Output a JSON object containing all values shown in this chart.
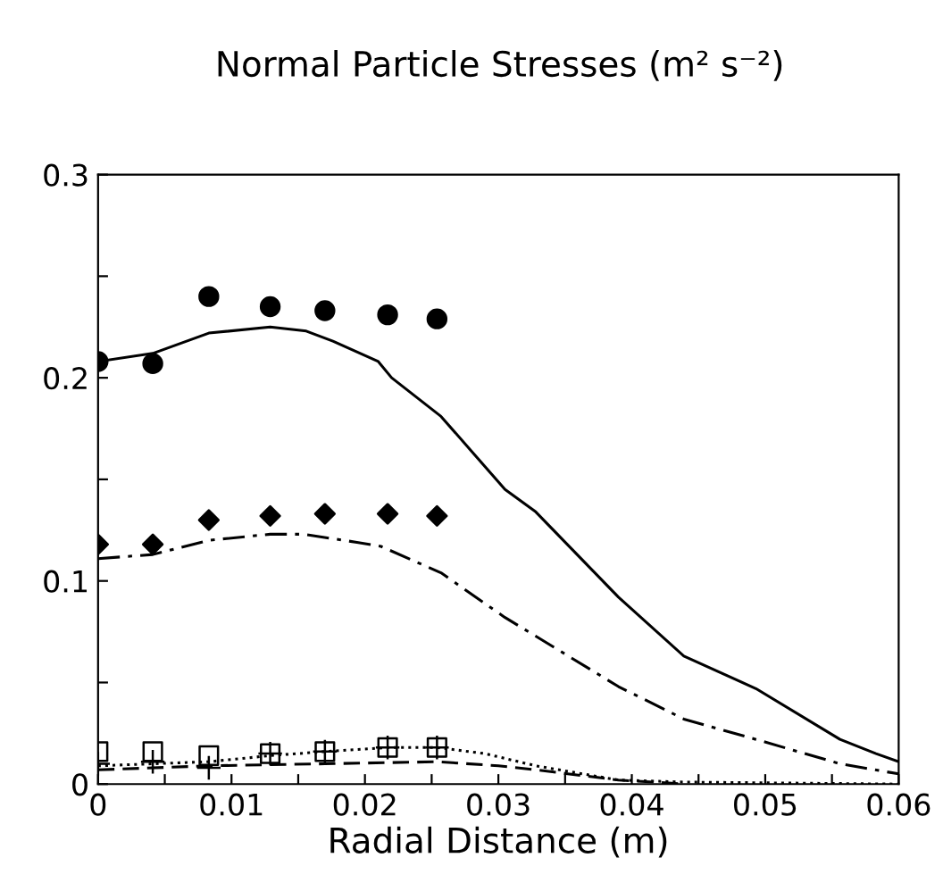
{
  "chart_data": {
    "type": "line",
    "title": "Normal Particle Stresses (m² s⁻²)",
    "xlabel": "Radial Distance (m)",
    "xlim": [
      0,
      0.06
    ],
    "ylim": [
      0,
      0.3
    ],
    "xticks": [
      0,
      {
        "value": 0.005,
        "label": null
      },
      0.01,
      {
        "value": 0.015,
        "label": null
      },
      0.02,
      {
        "value": 0.025,
        "label": null
      },
      0.03,
      {
        "value": 0.035,
        "label": null
      },
      0.04,
      {
        "value": 0.045,
        "label": null
      },
      0.05,
      {
        "value": 0.055,
        "label": null
      },
      0.06
    ],
    "yticks": [
      0,
      {
        "value": 0.05,
        "label": null
      },
      0.1,
      {
        "value": 0.15,
        "label": null
      },
      0.2,
      {
        "value": 0.25,
        "label": null
      },
      0.3
    ],
    "grid": false,
    "legend": false,
    "series": [
      {
        "type": "scatter",
        "marker": "circle",
        "color": "#000000",
        "x": [
          0,
          0.0041,
          0.0083,
          0.0129,
          0.017,
          0.0217,
          0.0254
        ],
        "values": [
          0.208,
          0.207,
          0.24,
          0.235,
          0.233,
          0.231,
          0.229
        ]
      },
      {
        "type": "scatter",
        "marker": "diamond",
        "color": "#000000",
        "x": [
          0,
          0.0041,
          0.0083,
          0.0129,
          0.017,
          0.0217,
          0.0254
        ],
        "values": [
          0.118,
          0.118,
          0.13,
          0.132,
          0.133,
          0.133,
          0.132
        ]
      },
      {
        "type": "scatter",
        "marker": "square",
        "color": "#000000",
        "x": [
          0,
          0.0041,
          0.0083,
          0.0129,
          0.017,
          0.0217,
          0.0254
        ],
        "values": [
          0.016,
          0.016,
          0.014,
          0.015,
          0.016,
          0.018,
          0.018
        ]
      },
      {
        "type": "scatter",
        "marker": "cross",
        "color": "#000000",
        "x": [
          0,
          0.0041,
          0.0083,
          0.0129,
          0.017,
          0.0217,
          0.0254
        ],
        "values": [
          0.01,
          0.011,
          0.008,
          0.015,
          0.016,
          0.018,
          0.018
        ]
      },
      {
        "line_style": "solid",
        "color": "#000000",
        "x": [
          0,
          0.0041,
          0.0083,
          0.0129,
          0.0156,
          0.0176,
          0.021,
          0.022,
          0.0257,
          0.0305,
          0.0328,
          0.039,
          0.0439,
          0.0493,
          0.0556,
          0.0583,
          0.06
        ],
        "values": [
          0.208,
          0.212,
          0.222,
          0.225,
          0.223,
          0.218,
          0.208,
          0.2,
          0.181,
          0.145,
          0.134,
          0.092,
          0.063,
          0.047,
          0.022,
          0.015,
          0.011
        ]
      },
      {
        "line_style": "dashdot",
        "color": "#000000",
        "x": [
          0,
          0.0041,
          0.0083,
          0.0129,
          0.0154,
          0.0194,
          0.0212,
          0.0257,
          0.0305,
          0.039,
          0.0439,
          0.0493,
          0.0556,
          0.06
        ],
        "values": [
          0.111,
          0.113,
          0.12,
          0.123,
          0.123,
          0.119,
          0.117,
          0.104,
          0.082,
          0.048,
          0.032,
          0.022,
          0.01,
          0.005
        ]
      },
      {
        "line_style": "dotted",
        "color": "#000000",
        "x": [
          0,
          0.0083,
          0.0129,
          0.017,
          0.0217,
          0.0254,
          0.029,
          0.0328,
          0.039,
          0.0439,
          0.06
        ],
        "values": [
          0.009,
          0.011,
          0.014,
          0.016,
          0.018,
          0.018,
          0.015,
          0.009,
          0.002,
          0.001,
          0
        ]
      },
      {
        "line_style": "dashed",
        "color": "#000000",
        "x": [
          0,
          0.0083,
          0.017,
          0.0254,
          0.03,
          0.0328,
          0.039,
          0.044
        ],
        "values": [
          0.007,
          0.009,
          0.01,
          0.011,
          0.009,
          0.007,
          0.002,
          0
        ]
      }
    ]
  }
}
